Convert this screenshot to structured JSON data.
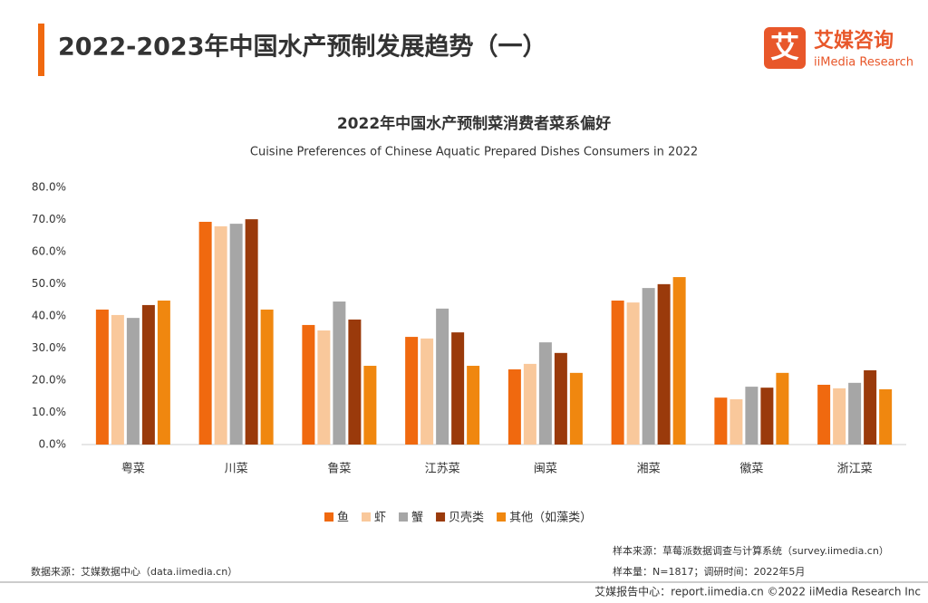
{
  "header": {
    "title": "2022-2023年中国水产预制发展趋势（一）",
    "logo_icon": "艾",
    "logo_cn": "艾媒咨询",
    "logo_en": "iiMedia Research"
  },
  "chart_data": {
    "type": "bar",
    "title": "2022年中国水产预制菜消费者菜系偏好",
    "subtitle": "Cuisine Preferences of Chinese Aquatic Prepared Dishes Consumers in 2022",
    "categories": [
      "粤菜",
      "川菜",
      "鲁菜",
      "江苏菜",
      "闽菜",
      "湘菜",
      "徽菜",
      "浙江菜"
    ],
    "series": [
      {
        "name": "鱼",
        "color": "#f0690f",
        "values": [
          42.0,
          69.3,
          37.2,
          33.5,
          23.4,
          44.8,
          14.6,
          18.6
        ]
      },
      {
        "name": "虾",
        "color": "#f9c89b",
        "values": [
          40.3,
          67.9,
          35.5,
          33.0,
          25.1,
          44.2,
          14.1,
          17.5
        ]
      },
      {
        "name": "蟹",
        "color": "#a6a6a6",
        "values": [
          39.4,
          68.7,
          44.5,
          42.3,
          31.8,
          48.7,
          18.0,
          19.2
        ]
      },
      {
        "name": "贝壳类",
        "color": "#9a3a0b",
        "values": [
          43.4,
          70.1,
          38.9,
          34.9,
          28.5,
          49.9,
          17.7,
          23.1
        ]
      },
      {
        "name": "其他（如藻类）",
        "color": "#f0870f",
        "values": [
          44.8,
          42.0,
          24.5,
          24.5,
          22.3,
          52.1,
          22.3,
          17.2
        ]
      }
    ],
    "ylim": [
      0,
      80
    ],
    "yticks": [
      {
        "value": 0,
        "label": "0.0%"
      },
      {
        "value": 10,
        "label": "10.0%"
      },
      {
        "value": 20,
        "label": "20.0%"
      },
      {
        "value": 30,
        "label": "30.0%"
      },
      {
        "value": 40,
        "label": "40.0%"
      },
      {
        "value": 50,
        "label": "50.0%"
      },
      {
        "value": 60,
        "label": "60.0%"
      },
      {
        "value": 70,
        "label": "70.0%"
      },
      {
        "value": 80,
        "label": "80.0%"
      }
    ],
    "grid": false,
    "legend": "bottom"
  },
  "notes": {
    "data_source": "数据来源：艾媒数据中心（data.iimedia.cn）",
    "sample_source": "样本来源：草莓派数据调查与计算系统（survey.iimedia.cn）",
    "sample_size": "样本量：N=1817；调研时间：2022年5月"
  },
  "footer": {
    "text": "艾媒报告中心：report.iimedia.cn   ©2022  iiMedia Research  Inc"
  }
}
